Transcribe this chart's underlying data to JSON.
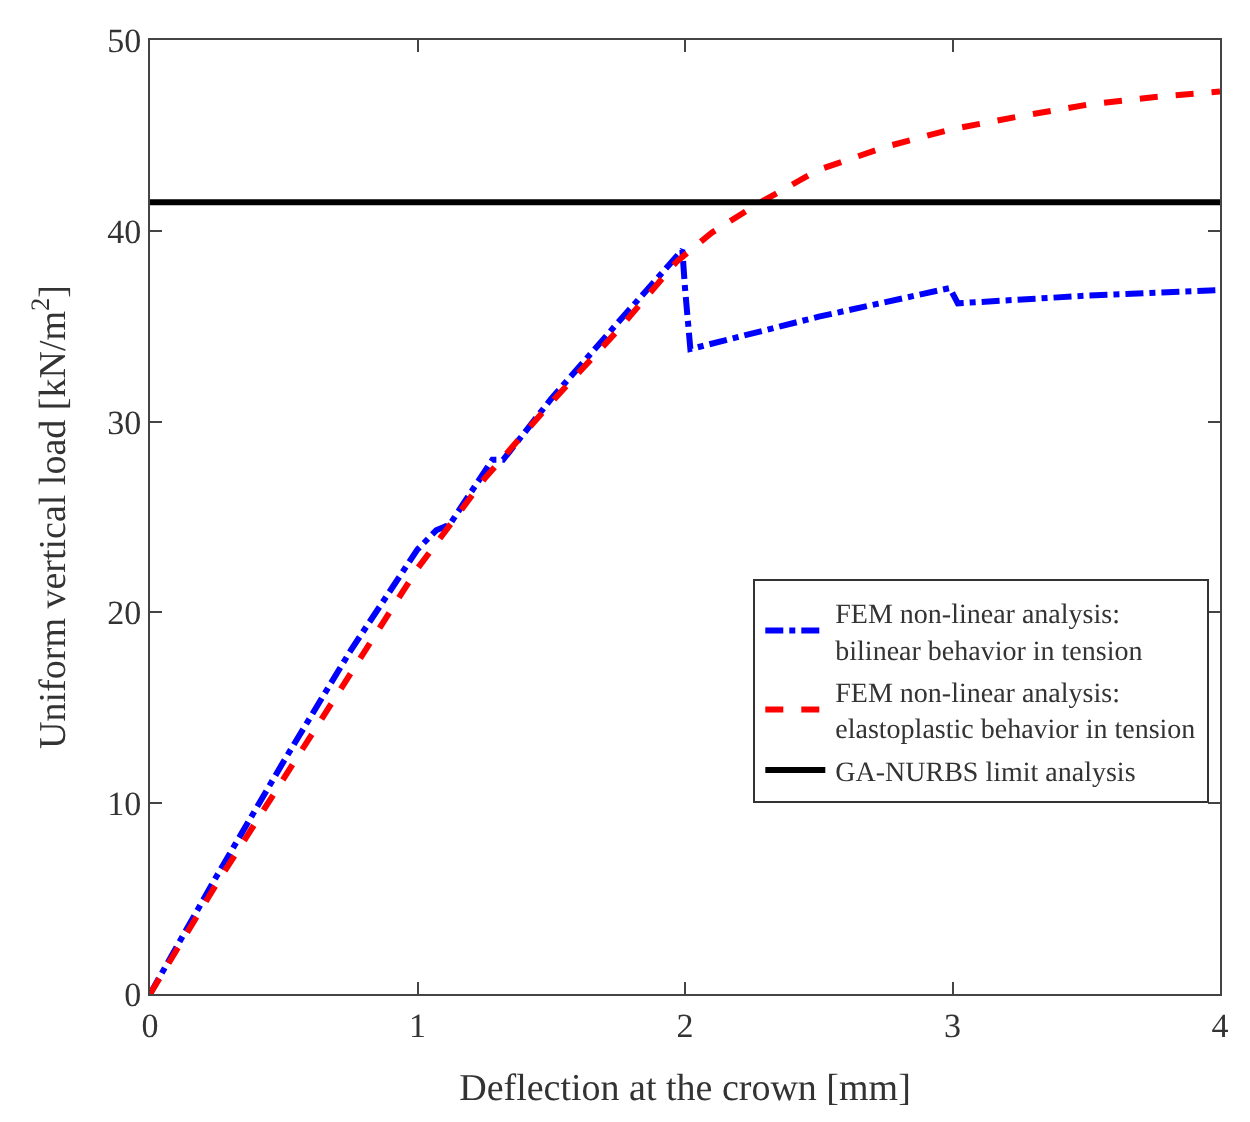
{
  "chart_data": {
    "type": "line",
    "xlabel": "Deflection at the crown [mm]",
    "ylabel": "Uniform vertical load [kN/m$^{2}$]",
    "xlim": [
      0,
      4
    ],
    "ylim": [
      0,
      50
    ],
    "xticks": [
      0,
      1,
      2,
      3,
      4
    ],
    "yticks": [
      0,
      10,
      20,
      30,
      40,
      50
    ],
    "legend": "bottom right",
    "marker": "none",
    "series": [
      {
        "name": "FEM non-linear analysis:\nbilinear behavior in tension",
        "color": "#0000ff",
        "line_style": "dashdot",
        "x": [
          0,
          0.25,
          0.5,
          0.75,
          1.0,
          1.07,
          1.12,
          1.28,
          1.32,
          1.5,
          1.75,
          1.99,
          2.0,
          2.02,
          2.5,
          2.99,
          3.02,
          3.5,
          4.0
        ],
        "values": [
          0,
          6.2,
          12.2,
          18.0,
          23.3,
          24.3,
          24.6,
          28.0,
          28.0,
          31.2,
          35.2,
          39.0,
          37.0,
          33.8,
          35.5,
          37.0,
          36.2,
          36.6,
          36.9
        ]
      },
      {
        "name": "FEM non-linear analysis:\nelastoplastic behavior in tension",
        "color": "#ff0000",
        "line_style": "dashed",
        "x": [
          0,
          0.25,
          0.5,
          0.75,
          1.0,
          1.25,
          1.5,
          1.75,
          1.97,
          2.1,
          2.27,
          2.5,
          2.75,
          2.99,
          3.25,
          3.5,
          3.75,
          4.0
        ],
        "values": [
          0,
          5.8,
          11.3,
          16.8,
          22.3,
          27.0,
          31.0,
          34.8,
          38.4,
          39.9,
          41.4,
          43.2,
          44.4,
          45.3,
          46.0,
          46.6,
          47.0,
          47.3
        ]
      },
      {
        "name": "GA-NURBS limit analysis",
        "color": "#000000",
        "line_style": "solid",
        "x": [
          0,
          4
        ],
        "values": [
          41.5,
          41.5
        ]
      }
    ]
  }
}
